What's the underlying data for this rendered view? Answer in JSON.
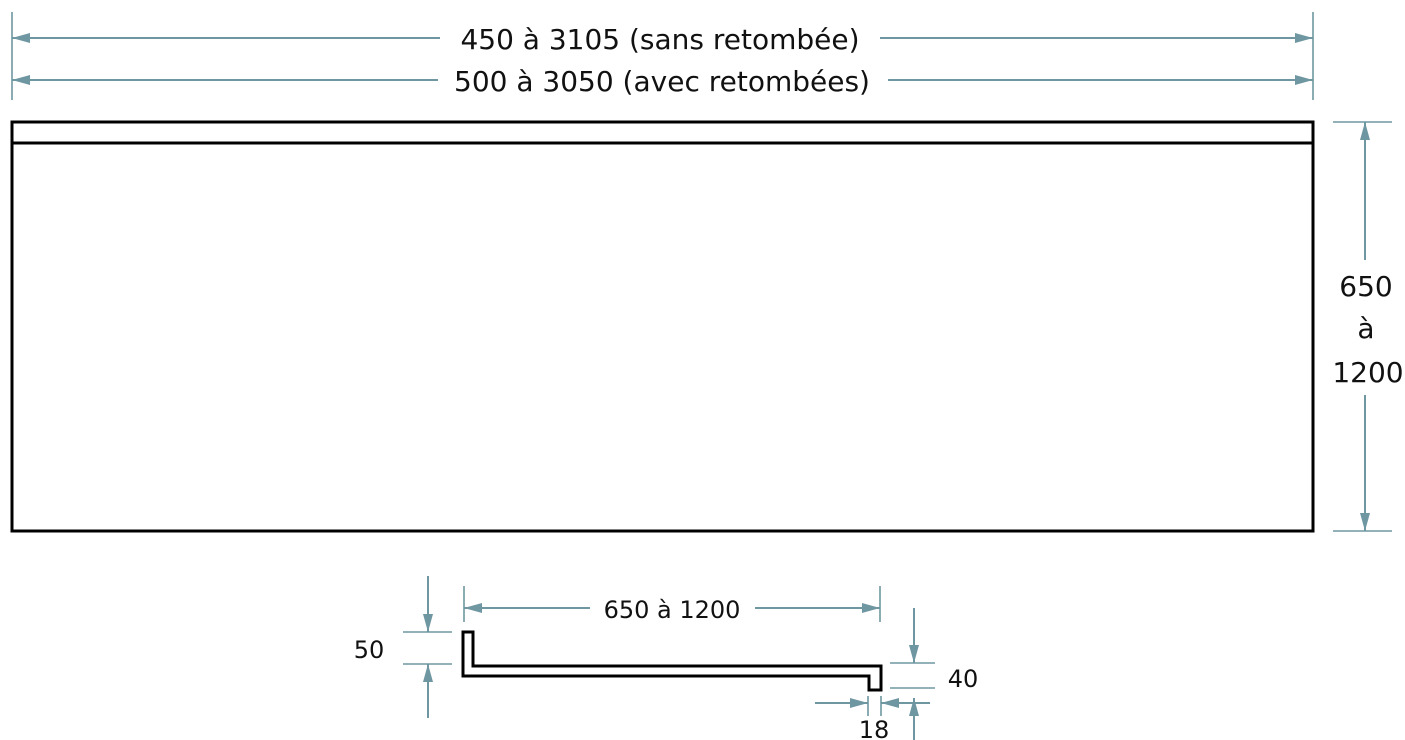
{
  "colors": {
    "dimension_line": "#6f97a2",
    "object_line": "#000000",
    "background": "#ffffff"
  },
  "dimensions": {
    "width_without_skirt": "450 à 3105 (sans retombée)",
    "width_with_skirts": "500 à 3050 (avec retombées)",
    "height_line1": "650",
    "height_line2": "à",
    "height_line3": "1200",
    "profile_depth": "650 à 1200",
    "profile_rise": "50",
    "profile_drop": "40",
    "profile_thickness": "18"
  }
}
